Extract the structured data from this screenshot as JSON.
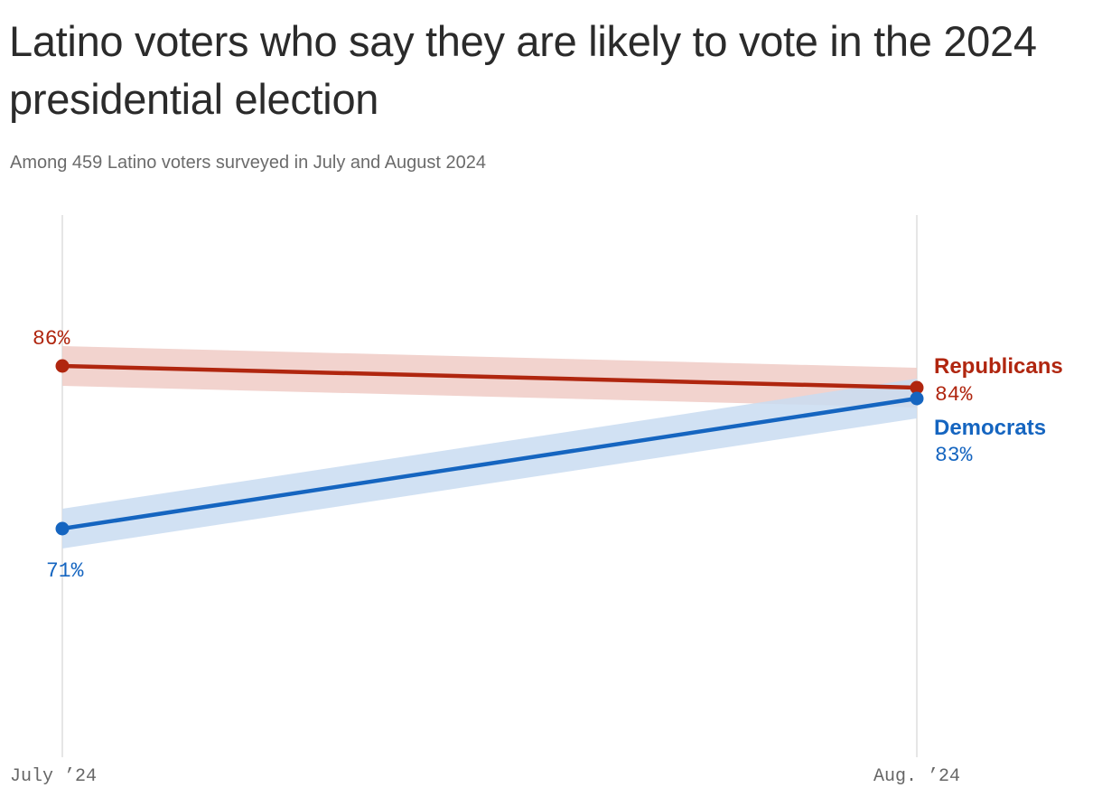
{
  "header": {
    "title": "Latino voters who say they are likely to vote in the 2024 presidential election",
    "subtitle": "Among 459 Latino voters surveyed in July and August 2024"
  },
  "colors": {
    "republicans": "#b0260f",
    "republicans_band": "#f0cbc6",
    "democrats": "#1565c0",
    "democrats_band": "#c9dcf1",
    "gridline": "#dddddd",
    "tick_text": "#666666"
  },
  "chart_data": {
    "type": "line",
    "x": [
      "July ’24",
      "Aug. ’24"
    ],
    "series": [
      {
        "name": "Republicans",
        "values": [
          86,
          84
        ],
        "value_labels": [
          "86%",
          "84%"
        ],
        "color": "#b0260f",
        "band_color": "#f0cbc6"
      },
      {
        "name": "Democrats",
        "values": [
          71,
          83
        ],
        "value_labels": [
          "71%",
          "83%"
        ],
        "color": "#1565c0",
        "band_color": "#c9dcf1"
      }
    ],
    "grid": "vertical lines at each x category",
    "legend": "direct labels at right end of lines"
  }
}
